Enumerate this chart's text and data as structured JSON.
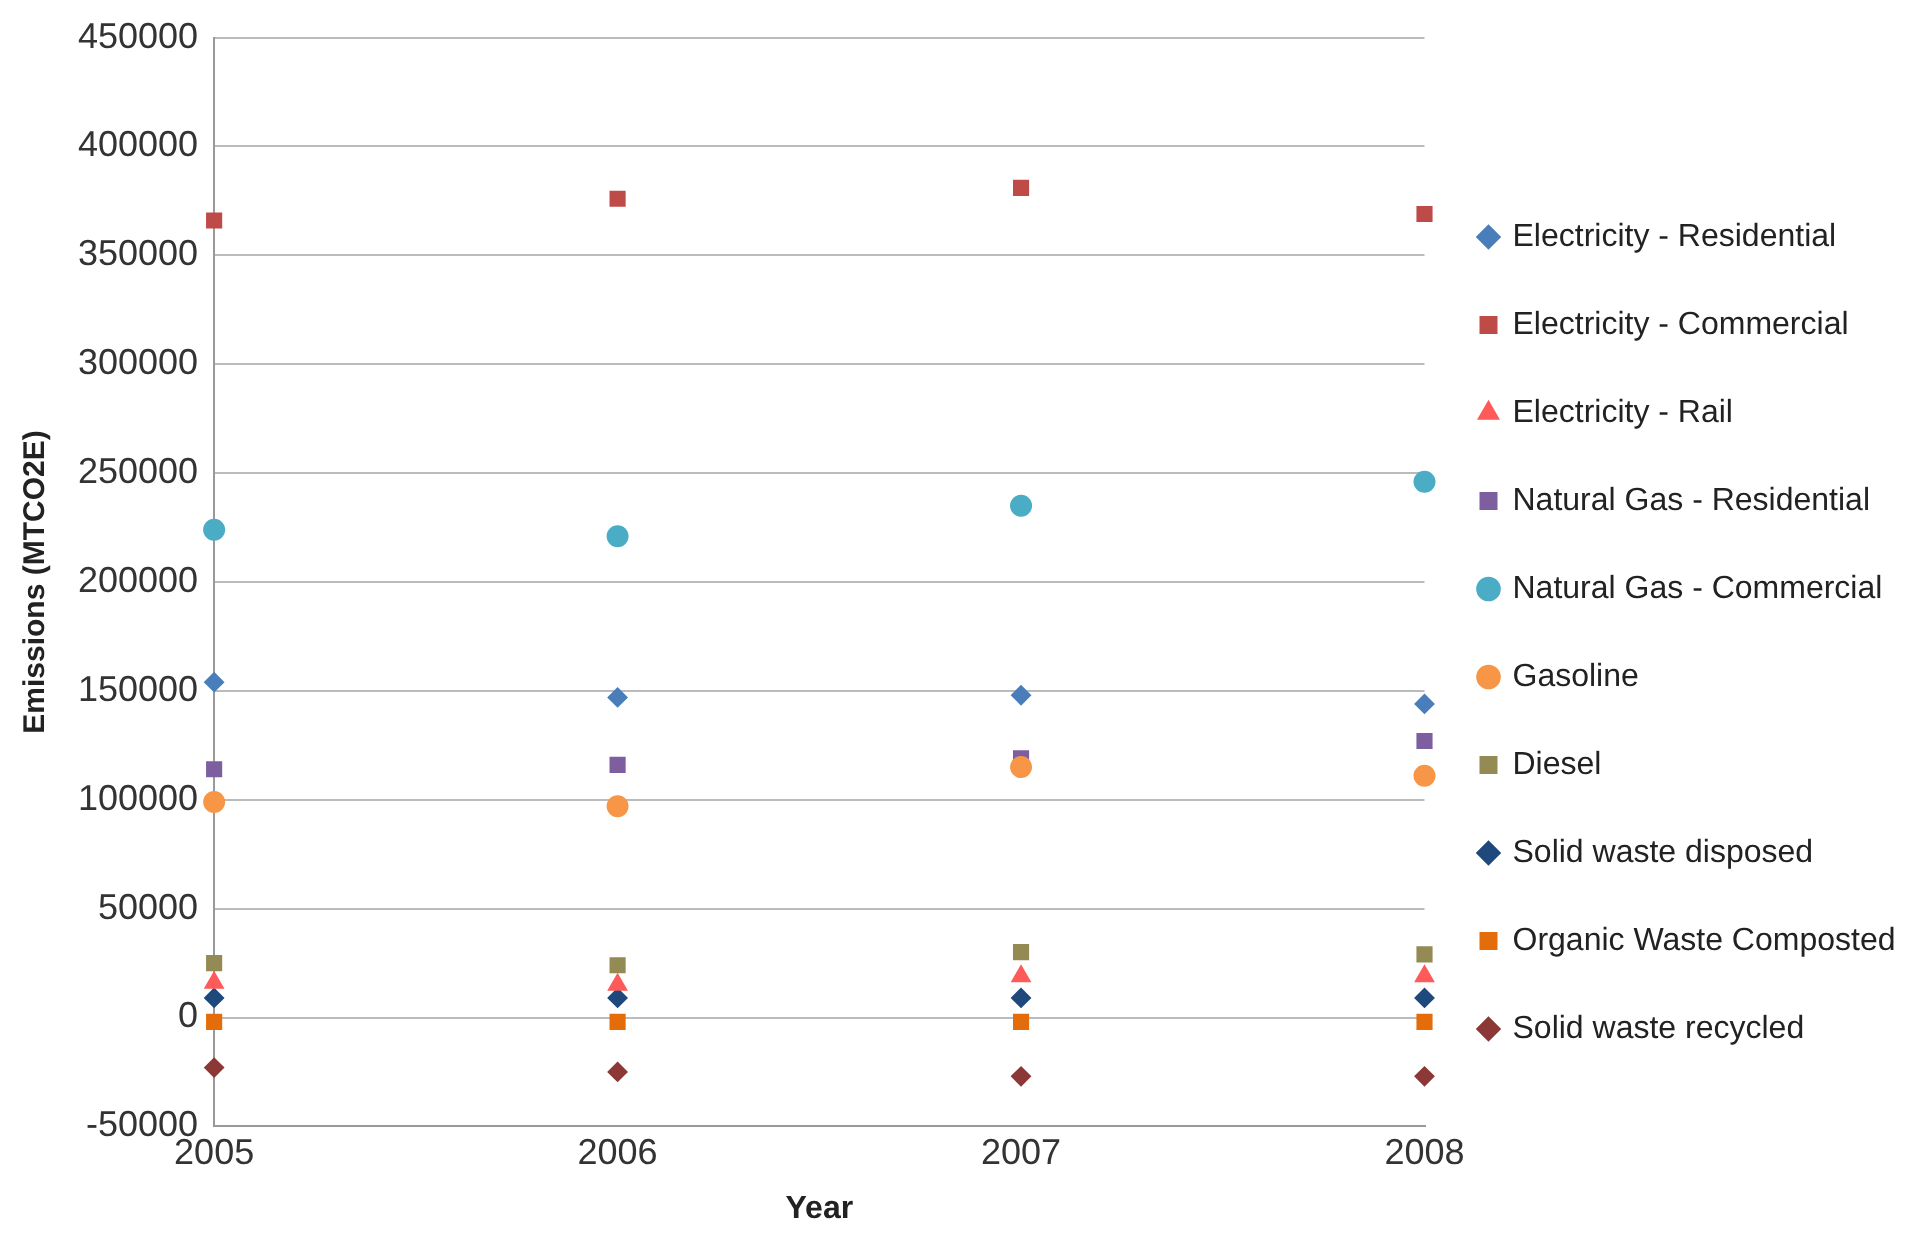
{
  "chart_data": {
    "type": "scatter",
    "xlabel": "Year",
    "ylabel": "Emissions (MTCO2E)",
    "categories": [
      "2005",
      "2006",
      "2007",
      "2008"
    ],
    "ylim": [
      -50000,
      450000
    ],
    "yticks": [
      -50000,
      0,
      50000,
      100000,
      150000,
      200000,
      250000,
      300000,
      350000,
      400000,
      450000
    ],
    "grid": "y",
    "legend": "right",
    "series": [
      {
        "name": "Electricity - Residential",
        "color": "#4a7ebb",
        "marker": "diamond",
        "values": [
          154000,
          147000,
          148000,
          144000
        ]
      },
      {
        "name": "Electricity - Commercial",
        "color": "#be4b48",
        "marker": "square",
        "values": [
          366000,
          376000,
          381000,
          369000
        ]
      },
      {
        "name": "Electricity - Rail",
        "color": "#ff5a5a",
        "marker": "triangle",
        "values": [
          16000,
          15000,
          19000,
          19000
        ]
      },
      {
        "name": "Natural Gas - Residential",
        "color": "#7d5fa0",
        "marker": "square",
        "values": [
          114000,
          116000,
          119000,
          127000
        ]
      },
      {
        "name": "Natural Gas - Commercial",
        "color": "#4bacc6",
        "marker": "circle",
        "values": [
          224000,
          221000,
          235000,
          246000
        ]
      },
      {
        "name": "Gasoline",
        "color": "#f79646",
        "marker": "circle",
        "values": [
          99000,
          97000,
          115000,
          111000
        ]
      },
      {
        "name": "Diesel",
        "color": "#948a54",
        "marker": "square",
        "values": [
          25000,
          24000,
          30000,
          29000
        ]
      },
      {
        "name": "Solid waste disposed",
        "color": "#1f497d",
        "marker": "diamond",
        "values": [
          9000,
          9000,
          9000,
          9000
        ]
      },
      {
        "name": "Organic Waste Composted",
        "color": "#e46c0a",
        "marker": "square",
        "values": [
          -2000,
          -2000,
          -2000,
          -2000
        ]
      },
      {
        "name": "Solid waste recycled",
        "color": "#8c3836",
        "marker": "diamond",
        "values": [
          -23000,
          -25000,
          -27000,
          -27000
        ]
      }
    ]
  }
}
